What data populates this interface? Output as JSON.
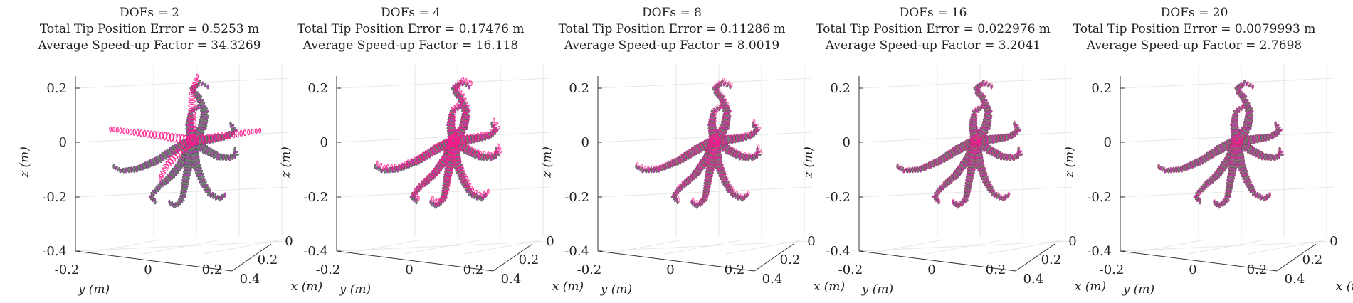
{
  "chart_data": [
    {
      "type": "scatter",
      "title_lines": [
        "DOFs = 2",
        "Total Tip Position Error = 0.5253 m",
        "Average Speed-up Factor = 34.3269"
      ],
      "dofs": 2,
      "tip_error_m": 0.5253,
      "speedup": 34.3269,
      "z_ticks": [
        "0.2",
        "0",
        "-0.2",
        "-0.4"
      ],
      "y_ticks": [
        "-0.2",
        "0",
        "0.2"
      ],
      "x_ticks": [
        "0",
        "0.2",
        "0.4"
      ],
      "zlabel": "z (m)",
      "ylabel": "y (m)",
      "xlabel": "x (m)",
      "xlim": [
        0,
        0.45
      ],
      "ylim": [
        -0.25,
        0.3
      ],
      "zlim": [
        -0.4,
        0.25
      ],
      "grid": true
    },
    {
      "type": "scatter",
      "title_lines": [
        "DOFs = 4",
        "Total Tip Position Error = 0.17476 m",
        "Average Speed-up Factor = 16.118"
      ],
      "dofs": 4,
      "tip_error_m": 0.17476,
      "speedup": 16.118,
      "z_ticks": [
        "0.2",
        "0",
        "-0.2",
        "-0.4"
      ],
      "y_ticks": [
        "-0.2",
        "0",
        "0.2"
      ],
      "x_ticks": [
        "0",
        "0.2",
        "0.4"
      ],
      "zlabel": "z (m)",
      "ylabel": "y (m)",
      "xlabel": "x (m)",
      "xlim": [
        0,
        0.45
      ],
      "ylim": [
        -0.25,
        0.3
      ],
      "zlim": [
        -0.4,
        0.25
      ],
      "grid": true
    },
    {
      "type": "scatter",
      "title_lines": [
        "DOFs = 8",
        "Total Tip Position Error = 0.11286 m",
        "Average Speed-up Factor = 8.0019"
      ],
      "dofs": 8,
      "tip_error_m": 0.11286,
      "speedup": 8.0019,
      "z_ticks": [
        "0.2",
        "0",
        "-0.2",
        "-0.4"
      ],
      "y_ticks": [
        "-0.2",
        "0",
        "0.2"
      ],
      "x_ticks": [
        "0",
        "0.2",
        "0.4"
      ],
      "zlabel": "z (m)",
      "ylabel": "y (m)",
      "xlabel": "x (m)",
      "xlim": [
        0,
        0.45
      ],
      "ylim": [
        -0.25,
        0.3
      ],
      "zlim": [
        -0.4,
        0.25
      ],
      "grid": true
    },
    {
      "type": "scatter",
      "title_lines": [
        "DOFs = 16",
        "Total Tip Position Error = 0.022976 m",
        "Average Speed-up Factor = 3.2041"
      ],
      "dofs": 16,
      "tip_error_m": 0.022976,
      "speedup": 3.2041,
      "z_ticks": [
        "0.2",
        "0",
        "-0.2",
        "-0.4"
      ],
      "y_ticks": [
        "-0.2",
        "0",
        "0.2"
      ],
      "x_ticks": [
        "0",
        "0.2",
        "0.4"
      ],
      "zlabel": "z (m)",
      "ylabel": "y (m)",
      "xlabel": "x (m)",
      "xlim": [
        0,
        0.45
      ],
      "ylim": [
        -0.25,
        0.3
      ],
      "zlim": [
        -0.4,
        0.25
      ],
      "grid": true
    },
    {
      "type": "scatter",
      "title_lines": [
        "DOFs = 20",
        "Total Tip Position Error = 0.0079993 m",
        "Average Speed-up Factor = 2.7698"
      ],
      "dofs": 20,
      "tip_error_m": 0.0079993,
      "speedup": 2.7698,
      "z_ticks": [
        "0.2",
        "0",
        "-0.2",
        "-0.4"
      ],
      "y_ticks": [
        "-0.2",
        "0",
        "0.2"
      ],
      "x_ticks": [
        "0",
        "0.2",
        "0.4"
      ],
      "zlabel": "z (m)",
      "ylabel": "y (m)",
      "xlabel": "x (m)",
      "xlim": [
        0,
        0.45
      ],
      "ylim": [
        -0.25,
        0.3
      ],
      "zlim": [
        -0.4,
        0.25
      ],
      "grid": true
    }
  ],
  "colors": {
    "reference_body": "#7a7a7a",
    "reference_ring": "#b040b0",
    "model_overlay": "#ff1a8c",
    "grid": "#e6e6e6",
    "axis": "#333333"
  }
}
